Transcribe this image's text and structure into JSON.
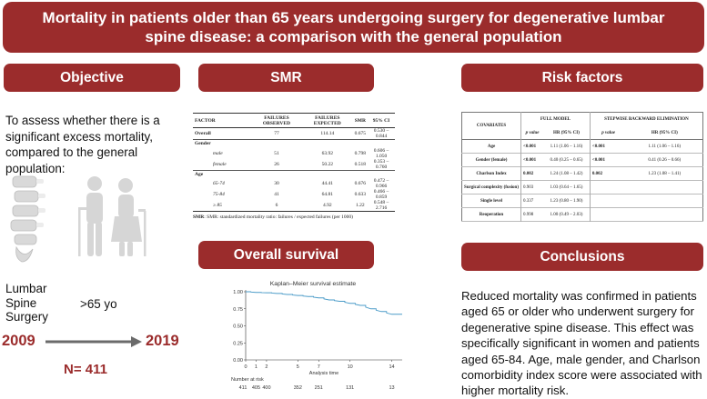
{
  "title": "Mortality in patients older than 65 years undergoing surgery for degenerative lumbar spine disease: a comparison with the general population",
  "objective": {
    "header": "Objective",
    "text": "To assess whether there is a significant excess mortality, compared to the general population:",
    "lumbar_label": "Lumbar\nSpine\nSurgery",
    "age_label": ">65 yo",
    "year_start": "2009",
    "year_end": "2019",
    "n_label": "N= 411"
  },
  "smr": {
    "header": "SMR",
    "columns": [
      "FACTOR",
      "FAILURES OBSERVED",
      "FAILURES EXPECTED",
      "SMR",
      "95% CI"
    ],
    "overall": [
      "Overall",
      "77",
      "114.14",
      "0.675",
      "0.530 – 0.844"
    ],
    "gender_label": "Gender",
    "gender_rows": [
      [
        "male",
        "51",
        "63.92",
        "0.798",
        "0.606 – 1.050"
      ],
      [
        "female",
        "26",
        "50.22",
        "0.518",
        "0.353 – 0.760"
      ]
    ],
    "age_label": "Age",
    "age_rows": [
      [
        "65-74",
        "30",
        "44.41",
        "0.676",
        "0.472 – 0.966"
      ],
      [
        "75-84",
        "41",
        "64.81",
        "0.633",
        "0.466 – 0.859"
      ],
      [
        "≥ 85",
        "6",
        "4.92",
        "1.22",
        "0.548 – 2.716"
      ]
    ],
    "note": "SMR: standardized mortality ratio: failures / expected failures (per 1000)"
  },
  "risk": {
    "header": "Risk factors",
    "col_covariates": "COVARIATES",
    "col_full": "FULL MODEL",
    "col_step": "STEPWISE BACKWARD ELIMINATION",
    "sub_p": "p value",
    "sub_hr": "HR (95% CI)",
    "rows": [
      [
        "Age",
        "<0.001",
        "1.11 (1.06 – 1.16)",
        "<0.001",
        "1.11 (1.06 – 1.16)"
      ],
      [
        "Gender (female)",
        "<0.001",
        "0.40 (0.25 – 0.65)",
        "<0.001",
        "0.41 (0.26 – 0.66)"
      ],
      [
        "Charlson Index",
        "0.002",
        "1.24 (1.08 – 1.42)",
        "0.002",
        "1.23 (1.08 – 1.41)"
      ],
      [
        "Surgical complexity (fusion)",
        "0.903",
        "1.03 (0.64 – 1.65)",
        "",
        ""
      ],
      [
        "Single level",
        "0.337",
        "1.23 (0.80 – 1.90)",
        "",
        ""
      ],
      [
        "Reoperation",
        "0.998",
        "1.00 (0.49 – 2.03)",
        "",
        ""
      ]
    ]
  },
  "survival": {
    "header": "Overall survival",
    "chart_title": "Kaplan–Meier survival estimate",
    "xlabel": "Analysis time",
    "number_at_risk_label": "Number at risk",
    "y_ticks": [
      "1.00",
      "0.75",
      "0.50",
      "0.25",
      "0.00"
    ],
    "x_ticks": [
      "0",
      "1",
      "2",
      "5",
      "7",
      "10",
      "14"
    ],
    "at_risk": [
      "411",
      "405",
      "400",
      "352",
      "251",
      "131",
      "13"
    ]
  },
  "chart_data": {
    "type": "line",
    "title": "Kaplan–Meier survival estimate",
    "xlabel": "Analysis time",
    "ylabel": "",
    "xlim": [
      0,
      15
    ],
    "ylim": [
      0,
      1
    ],
    "x_ticks": [
      0,
      1,
      2,
      5,
      7,
      10,
      14
    ],
    "y_ticks": [
      0,
      0.25,
      0.5,
      0.75,
      1.0
    ],
    "series": [
      {
        "name": "Survival",
        "x": [
          0,
          1,
          2,
          3,
          4,
          5,
          6,
          7,
          8,
          9,
          10,
          11,
          12,
          13,
          14,
          15
        ],
        "values": [
          1.0,
          0.99,
          0.985,
          0.975,
          0.96,
          0.945,
          0.93,
          0.91,
          0.88,
          0.86,
          0.83,
          0.8,
          0.75,
          0.71,
          0.67,
          0.67
        ]
      }
    ],
    "number_at_risk": {
      "x": [
        0,
        1,
        2,
        5,
        7,
        10,
        14
      ],
      "values": [
        411,
        405,
        400,
        352,
        251,
        131,
        13
      ]
    }
  },
  "conclusions": {
    "header": "Conclusions",
    "text": "Reduced mortality was confirmed in patients aged 65 or older who underwent surgery for degenerative spine disease. This effect was specifically significant in women and patients aged 65-84. Age, male gender, and Charlson comorbidity index score were associated with higher mortality risk."
  },
  "colors": {
    "accent": "#9b2c2c",
    "curve": "#4a9bc8",
    "arrow": "#6b6b6b"
  }
}
